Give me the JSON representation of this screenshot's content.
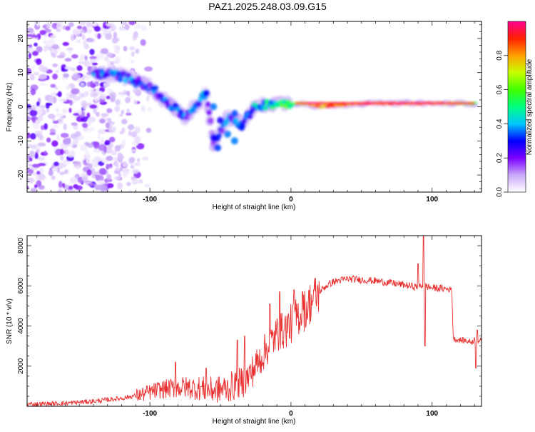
{
  "title": "PAZ1.2025.248.03.09.G15",
  "chart_data": [
    {
      "type": "heatmap",
      "name": "spectrogram",
      "xlabel": "Height of straight line (km)",
      "ylabel": "Frequency (Hz)",
      "xlim": [
        -187,
        135
      ],
      "ylim": [
        -25,
        25
      ],
      "x_ticks": [
        -100,
        0,
        100
      ],
      "y_ticks": [
        -20,
        -10,
        0,
        10,
        20
      ],
      "colorbar": {
        "label": "Normalized spectral amplitude",
        "range": [
          0,
          1
        ],
        "ticks": [
          0.0,
          0.2,
          0.4,
          0.6,
          0.8
        ],
        "tick_labels": [
          "0.0",
          "0.2",
          "0.4",
          "0.6",
          "0.8"
        ],
        "colors": [
          "#ffffff",
          "#c8a8f8",
          "#7a00ff",
          "#0000ff",
          "#00c8ff",
          "#00ff80",
          "#40ff00",
          "#c8ff00",
          "#ffa000",
          "#ff2000",
          "#ff0090"
        ]
      },
      "ridge": [
        {
          "x": -140,
          "y": 10,
          "amp": 0.3
        },
        {
          "x": -120,
          "y": 9,
          "amp": 0.3
        },
        {
          "x": -100,
          "y": 6,
          "amp": 0.25
        },
        {
          "x": -90,
          "y": 2,
          "amp": 0.3
        },
        {
          "x": -75,
          "y": -3,
          "amp": 0.3
        },
        {
          "x": -60,
          "y": 4,
          "amp": 0.3
        },
        {
          "x": -55,
          "y": -11,
          "amp": 0.2
        },
        {
          "x": -45,
          "y": -3,
          "amp": 0.3
        },
        {
          "x": -35,
          "y": -5,
          "amp": 0.3
        },
        {
          "x": -25,
          "y": 0,
          "amp": 0.35
        },
        {
          "x": -15,
          "y": 1,
          "amp": 0.45
        },
        {
          "x": 0,
          "y": 1,
          "amp": 0.55
        },
        {
          "x": 10,
          "y": 1,
          "amp": 0.75
        },
        {
          "x": 20,
          "y": 0,
          "amp": 0.8
        },
        {
          "x": 50,
          "y": 1,
          "amp": 0.9
        },
        {
          "x": 80,
          "y": 1,
          "amp": 0.9
        },
        {
          "x": 95,
          "y": 1,
          "amp": 0.85
        },
        {
          "x": 110,
          "y": 1,
          "amp": 0.8
        },
        {
          "x": 130,
          "y": 1,
          "amp": 0.5
        }
      ]
    },
    {
      "type": "line",
      "name": "snr",
      "xlabel": "Height of straight line (km)",
      "ylabel": "SNR (10 * v/v)",
      "xlim": [
        -187,
        135
      ],
      "ylim": [
        0,
        8500
      ],
      "x_ticks": [
        -100,
        0,
        100
      ],
      "y_ticks": [
        2000,
        4000,
        6000,
        8000
      ],
      "series": [
        {
          "name": "SNR",
          "color": "#e83030",
          "x": [
            -187,
            -160,
            -140,
            -120,
            -105,
            -95,
            -85,
            -75,
            -65,
            -55,
            -45,
            -38,
            -32,
            -25,
            -18,
            -10,
            -5,
            0,
            5,
            10,
            15,
            20,
            25,
            30,
            40,
            50,
            60,
            70,
            80,
            88,
            92,
            95,
            97,
            100,
            110,
            114,
            115,
            120,
            125,
            128,
            130,
            133,
            135
          ],
          "y": [
            100,
            150,
            250,
            400,
            600,
            800,
            900,
            950,
            900,
            800,
            900,
            1100,
            1300,
            2000,
            2800,
            3600,
            3800,
            4100,
            4500,
            4800,
            5300,
            5700,
            6000,
            6200,
            6350,
            6300,
            6250,
            6150,
            6050,
            5950,
            6000,
            6050,
            5950,
            5900,
            5850,
            5800,
            3350,
            3300,
            3250,
            3200,
            3300,
            3250,
            3250
          ],
          "spikes": [
            {
              "x": -82,
              "y": 2200
            },
            {
              "x": -60,
              "y": 1900
            },
            {
              "x": -38,
              "y": 3300
            },
            {
              "x": -33,
              "y": 3500
            },
            {
              "x": -15,
              "y": 5100
            },
            {
              "x": -8,
              "y": 5700
            },
            {
              "x": 2,
              "y": 5800
            },
            {
              "x": 8,
              "y": 5700
            },
            {
              "x": 90,
              "y": 7100
            },
            {
              "x": 94,
              "y": 8500
            },
            {
              "x": 95,
              "y": 3000
            },
            {
              "x": 131,
              "y": 1900
            },
            {
              "x": 132,
              "y": 3800
            }
          ]
        }
      ]
    }
  ]
}
